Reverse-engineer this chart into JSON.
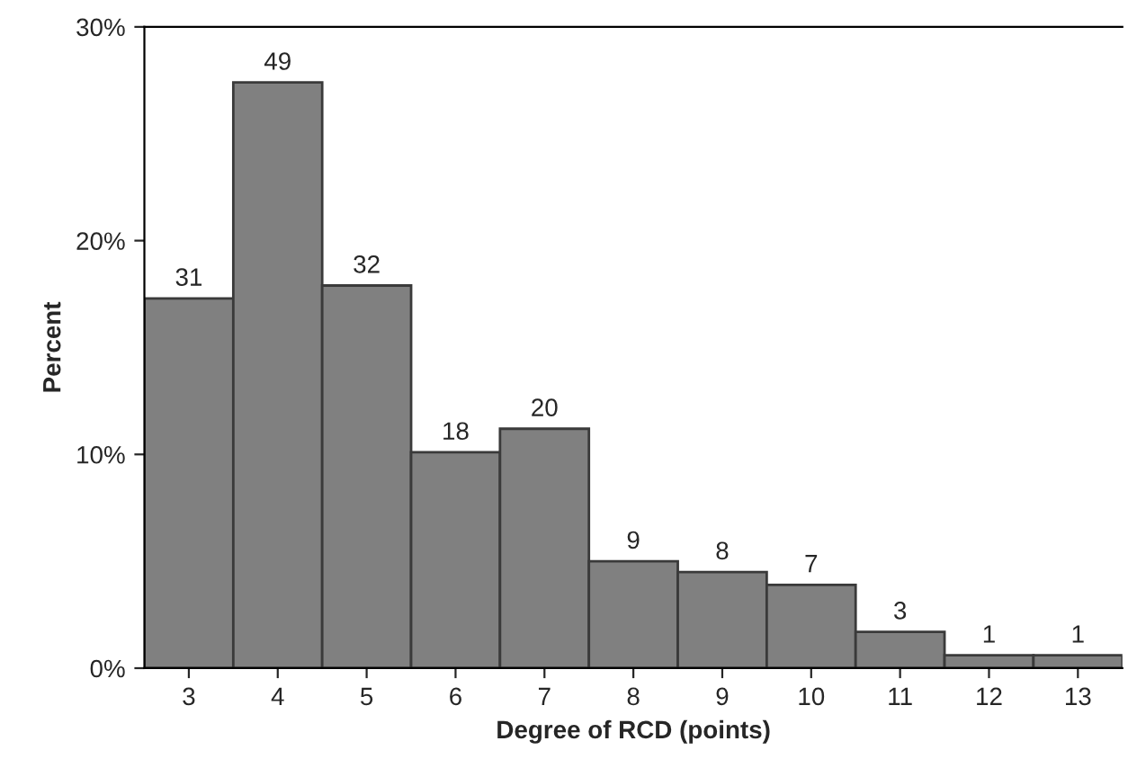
{
  "chart_data": {
    "type": "bar",
    "xlabel": "Degree of RCD (points)",
    "ylabel": "Percent",
    "categories": [
      "3",
      "4",
      "5",
      "6",
      "7",
      "8",
      "9",
      "10",
      "11",
      "12",
      "13"
    ],
    "values": [
      17.3,
      27.4,
      17.9,
      10.1,
      11.2,
      5.0,
      4.5,
      3.9,
      1.7,
      0.6,
      0.6
    ],
    "annotations": [
      {
        "text": "31",
        "x": "3",
        "y": 17.3
      },
      {
        "text": "49",
        "x": "4",
        "y": 27.4
      },
      {
        "text": "32",
        "x": "5",
        "y": 17.9
      },
      {
        "text": "18",
        "x": "6",
        "y": 10.1
      },
      {
        "text": "20",
        "x": "7",
        "y": 11.2
      },
      {
        "text": "9",
        "x": "8",
        "y": 5.0
      },
      {
        "text": "8",
        "x": "9",
        "y": 4.5
      },
      {
        "text": "7",
        "x": "10",
        "y": 3.9
      },
      {
        "text": "3",
        "x": "11",
        "y": 1.7
      },
      {
        "text": "1",
        "x": "12",
        "y": 0.6
      },
      {
        "text": "1",
        "x": "13",
        "y": 0.6
      }
    ],
    "color": "#808080",
    "ylim": [
      0,
      30
    ],
    "yticks": [
      {
        "value": 0,
        "label": "0%"
      },
      {
        "value": 10,
        "label": "10%"
      },
      {
        "value": 20,
        "label": "20%"
      },
      {
        "value": 30,
        "label": "30%"
      }
    ],
    "grid": false,
    "legend": false
  }
}
